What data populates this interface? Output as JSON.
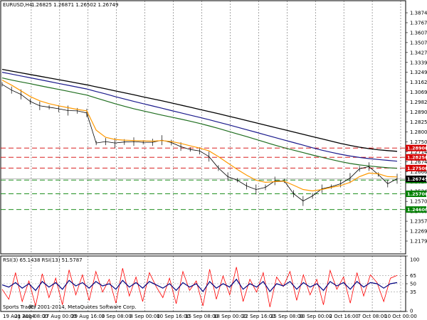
{
  "window": {
    "header": "EURUSD,H4",
    "ohlc": "1.26825 1.26871 1.26502 1.26749",
    "copyright": "(C) 2001-2014, MetaQuotes Software Corp.",
    "overlay_text": "Sports Trader",
    "rsi_header": "RSI(3) 65.1438  RSI(13) 51.5787"
  },
  "price_axis_labels": [
    "1.38745",
    "1.37670",
    "1.36070",
    "1.35070",
    "1.34270",
    "1.33395",
    "1.32495",
    "1.31620",
    "1.30695",
    "1.29820",
    "1.28900",
    "1.28250",
    "1.28000",
    "1.27500",
    "1.27145",
    "1.26749",
    "1.26660",
    "1.26245",
    "1.25345",
    "1.25700",
    "1.24600",
    "1.23570",
    "1.22695",
    "1.21795"
  ],
  "rsi_axis_labels": [
    "100",
    "65",
    "50",
    "35",
    "0"
  ],
  "time_labels": [
    "19 Aug 2014",
    "21 Aug 08:00",
    "27 Aug 00:00",
    "29 Aug 16:00",
    "3 Sep 08:00",
    "8 Sep 00:00",
    "10 Sep 16:00",
    "15 Sep 08:00",
    "18 Sep 00:00",
    "22 Sep 16:00",
    "25 Sep 08:00",
    "30 Sep 00:00",
    "2 Oct 16:00",
    "7 Oct 08:00",
    "10 Oct 00:00"
  ],
  "levels": [
    {
      "price": 1.289,
      "label": "1.28900",
      "color": "#d40000",
      "style": "dash"
    },
    {
      "price": 1.2825,
      "label": "1.28250",
      "color": "#d40000",
      "style": "dash"
    },
    {
      "price": 1.275,
      "label": "1.27500",
      "color": "#d40000",
      "style": "dash"
    },
    {
      "price": 1.2666,
      "label": "1.26660",
      "color": "#008000",
      "style": "dash"
    },
    {
      "price": 1.257,
      "label": "1.25700",
      "color": "#008000",
      "style": "dash"
    },
    {
      "price": 1.246,
      "label": "1.24600",
      "color": "#008000",
      "style": "dash"
    }
  ],
  "current_price": {
    "price": 1.26749,
    "label": "1.26749",
    "color": "#000000"
  },
  "colors": {
    "price": "#000000",
    "ma_black": "#000000",
    "ma_navy": "#1a1a8c",
    "ma_green": "#1f6e1f",
    "ma_orange": "#ff9900",
    "rsi_fast": "#ff0000",
    "rsi_slow": "#000080",
    "grid": "#000000"
  },
  "chart_data": {
    "type": "line",
    "x_labels": [
      "19 Aug 2014",
      "21 Aug 08:00",
      "27 Aug 00:00",
      "29 Aug 16:00",
      "3 Sep 08:00",
      "8 Sep 00:00",
      "10 Sep 16:00",
      "15 Sep 08:00",
      "18 Sep 00:00",
      "22 Sep 16:00",
      "25 Sep 08:00",
      "30 Sep 00:00",
      "2 Oct 16:00",
      "7 Oct 08:00",
      "10 Oct 00:00"
    ],
    "ylim": [
      1.215,
      1.392
    ],
    "series": [
      {
        "values": [
          1.3335,
          1.3295,
          1.3265,
          1.3215,
          1.3185,
          1.3175,
          1.3165,
          1.3152,
          1.315,
          1.3135,
          1.2925,
          1.2935,
          1.2925,
          1.2932,
          1.2935,
          1.293,
          1.293,
          1.2945,
          1.2928,
          1.29,
          1.288,
          1.287,
          1.283,
          1.275,
          1.269,
          1.2665,
          1.2625,
          1.26,
          1.2615,
          1.266,
          1.266,
          1.257,
          1.252,
          1.2555,
          1.2605,
          1.262,
          1.264,
          1.268,
          1.2745,
          1.276,
          1.2705,
          1.264,
          1.2675
        ]
      },
      {
        "values": [
          1.3365,
          1.333,
          1.329,
          1.325,
          1.322,
          1.32,
          1.3185,
          1.3172,
          1.316,
          1.315,
          1.3015,
          1.2965,
          1.295,
          1.2945,
          1.2942,
          1.294,
          1.2938,
          1.2942,
          1.2935,
          1.2922,
          1.2905,
          1.289,
          1.287,
          1.283,
          1.2785,
          1.274,
          1.27,
          1.2665,
          1.265,
          1.2655,
          1.2658,
          1.263,
          1.26,
          1.259,
          1.26,
          1.2615,
          1.2628,
          1.265,
          1.269,
          1.2715,
          1.271,
          1.269,
          1.2688
        ]
      },
      {
        "values": [
          1.338,
          1.3365,
          1.3352,
          1.334,
          1.3326,
          1.3313,
          1.33,
          1.3287,
          1.3273,
          1.326,
          1.324,
          1.322,
          1.32,
          1.3182,
          1.3165,
          1.315,
          1.3135,
          1.312,
          1.3106,
          1.3092,
          1.3078,
          1.3062,
          1.3045,
          1.3027,
          1.3008,
          1.2989,
          1.297,
          1.295,
          1.293,
          1.291,
          1.2892,
          1.2875,
          1.2858,
          1.2841,
          1.2825,
          1.281,
          1.2795,
          1.2782,
          1.2772,
          1.2765,
          1.2758,
          1.2752,
          1.2748
        ]
      },
      {
        "values": [
          1.342,
          1.3407,
          1.3394,
          1.3381,
          1.3368,
          1.3355,
          1.3342,
          1.3329,
          1.3316,
          1.3303,
          1.3285,
          1.3268,
          1.325,
          1.3233,
          1.3216,
          1.32,
          1.3184,
          1.3168,
          1.3152,
          1.3136,
          1.312,
          1.3104,
          1.3088,
          1.3071,
          1.3054,
          1.3036,
          1.3018,
          1.3,
          1.2982,
          1.2964,
          1.2946,
          1.2928,
          1.291,
          1.2892,
          1.2875,
          1.286,
          1.2846,
          1.2834,
          1.2824,
          1.2816,
          1.281,
          1.2804,
          1.2798
        ]
      },
      {
        "values": [
          1.344,
          1.3428,
          1.3416,
          1.3404,
          1.3392,
          1.338,
          1.3368,
          1.3356,
          1.3344,
          1.3332,
          1.3318,
          1.3304,
          1.329,
          1.3276,
          1.3262,
          1.3248,
          1.3234,
          1.322,
          1.3205,
          1.319,
          1.3175,
          1.316,
          1.3145,
          1.313,
          1.3114,
          1.3098,
          1.3082,
          1.3066,
          1.305,
          1.3034,
          1.3018,
          1.3002,
          1.2986,
          1.297,
          1.2954,
          1.2938,
          1.2922,
          1.2908,
          1.2896,
          1.2886,
          1.2878,
          1.2872,
          1.2867
        ]
      }
    ],
    "rsi": {
      "ylim": [
        0,
        100
      ],
      "levels": [
        65,
        50,
        35
      ],
      "series": [
        {
          "values": [
            40,
            22,
            70,
            18,
            55,
            10,
            68,
            25,
            60,
            12,
            75,
            30,
            66,
            20,
            72,
            35,
            58,
            15,
            78,
            28,
            62,
            18,
            70,
            45,
            25,
            60,
            14,
            72,
            38,
            55,
            10,
            76,
            22,
            64,
            30,
            80,
            18,
            58,
            35,
            70,
            8,
            62,
            45,
            72,
            20,
            66,
            30,
            58,
            12,
            74,
            40,
            62,
            15,
            70,
            28,
            66,
            52,
            18,
            60,
            65
          ]
        },
        {
          "values": [
            48,
            44,
            52,
            42,
            50,
            38,
            54,
            44,
            52,
            40,
            56,
            46,
            52,
            42,
            54,
            46,
            50,
            40,
            56,
            44,
            52,
            42,
            54,
            48,
            42,
            50,
            38,
            52,
            44,
            50,
            36,
            54,
            42,
            50,
            44,
            58,
            40,
            50,
            44,
            54,
            36,
            50,
            46,
            54,
            40,
            52,
            44,
            50,
            38,
            54,
            46,
            52,
            40,
            54,
            44,
            52,
            50,
            42,
            50,
            52
          ]
        }
      ]
    }
  }
}
